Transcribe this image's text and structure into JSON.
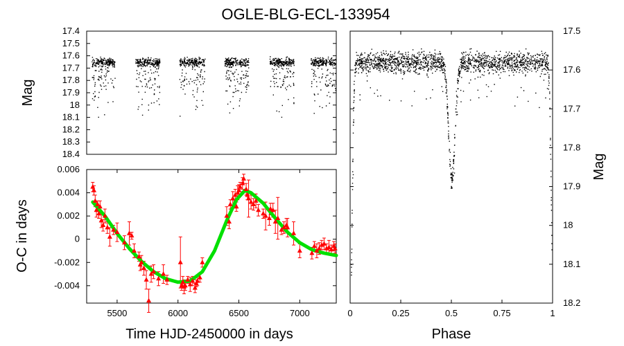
{
  "title": "OGLE-BLG-ECL-133954",
  "chart_data": [
    {
      "id": "lightcurve",
      "type": "scatter",
      "ylabel": "Mag",
      "xlim": [
        5250,
        7300
      ],
      "ylim": [
        18.4,
        17.4
      ],
      "yticks": [
        "17.4",
        "17.5",
        "17.6",
        "17.7",
        "17.8",
        "17.9",
        "18",
        "18.1",
        "18.2",
        "18.3",
        "18.4"
      ],
      "color": "#000000",
      "seasons": [
        {
          "start": 5290,
          "end": 5480
        },
        {
          "start": 5650,
          "end": 5850
        },
        {
          "start": 6010,
          "end": 6220
        },
        {
          "start": 6380,
          "end": 6580
        },
        {
          "start": 6750,
          "end": 6950
        },
        {
          "start": 7090,
          "end": 7300
        }
      ],
      "base_mag": 17.65,
      "eclipse_depth_mag": 0.5
    },
    {
      "id": "oc",
      "type": "scatter",
      "xlabel": "Time HJD-2450000 in days",
      "ylabel": "O-C in days",
      "xlim": [
        5250,
        7300
      ],
      "ylim": [
        -0.0055,
        0.006
      ],
      "xticks": [
        "5500",
        "6000",
        "6500",
        "7000"
      ],
      "yticks": [
        "0.006",
        "0.004",
        "0.002",
        "0",
        "-0.002",
        "-0.004"
      ],
      "points_color": "#ff0000",
      "fit_color": "#00e000",
      "points": [
        [
          5300,
          0.0045
        ],
        [
          5310,
          0.0042
        ],
        [
          5320,
          0.0033
        ],
        [
          5330,
          0.0025
        ],
        [
          5340,
          0.003
        ],
        [
          5350,
          0.0022
        ],
        [
          5360,
          0.0028
        ],
        [
          5370,
          0.0016
        ],
        [
          5385,
          0.0012
        ],
        [
          5400,
          0.002
        ],
        [
          5420,
          0.001
        ],
        [
          5440,
          0.0002
        ],
        [
          5470,
          0.0008
        ],
        [
          5500,
          0.0006
        ],
        [
          5560,
          -0.0003
        ],
        [
          5600,
          0.0005
        ],
        [
          5620,
          0.0003
        ],
        [
          5640,
          -0.001
        ],
        [
          5680,
          -0.0015
        ],
        [
          5690,
          -0.0022
        ],
        [
          5700,
          -0.002
        ],
        [
          5720,
          -0.0025
        ],
        [
          5740,
          -0.0035
        ],
        [
          5760,
          -0.0053
        ],
        [
          5780,
          -0.003
        ],
        [
          5800,
          -0.0028
        ],
        [
          5840,
          -0.0034
        ],
        [
          5880,
          -0.003
        ],
        [
          5910,
          -0.0035
        ],
        [
          6020,
          -0.002
        ],
        [
          6030,
          -0.004
        ],
        [
          6040,
          -0.0037
        ],
        [
          6050,
          -0.0041
        ],
        [
          6060,
          -0.004
        ],
        [
          6080,
          -0.0035
        ],
        [
          6100,
          -0.0039
        ],
        [
          6120,
          -0.0036
        ],
        [
          6140,
          -0.0042
        ],
        [
          6150,
          -0.0038
        ],
        [
          6160,
          -0.0036
        ],
        [
          6180,
          -0.0033
        ],
        [
          6200,
          -0.002
        ],
        [
          6400,
          0.002
        ],
        [
          6420,
          0.0015
        ],
        [
          6430,
          0.003
        ],
        [
          6450,
          0.0035
        ],
        [
          6470,
          0.0038
        ],
        [
          6480,
          0.0028
        ],
        [
          6490,
          0.004
        ],
        [
          6500,
          0.0042
        ],
        [
          6510,
          0.0045
        ],
        [
          6530,
          0.0048
        ],
        [
          6540,
          0.0052
        ],
        [
          6560,
          0.0043
        ],
        [
          6570,
          0.0038
        ],
        [
          6580,
          0.0035
        ],
        [
          6600,
          0.0032
        ],
        [
          6620,
          0.003
        ],
        [
          6640,
          0.0033
        ],
        [
          6660,
          0.0025
        ],
        [
          6700,
          0.0022
        ],
        [
          6720,
          0.002
        ],
        [
          6750,
          0.0018
        ],
        [
          6760,
          0.0026
        ],
        [
          6780,
          0.0025
        ],
        [
          6800,
          0.0015
        ],
        [
          6820,
          0.0018
        ],
        [
          6850,
          0.0008
        ],
        [
          6870,
          0.001
        ],
        [
          6890,
          0.0012
        ],
        [
          6900,
          0.001
        ],
        [
          6950,
          0.0005
        ],
        [
          7000,
          -0.001
        ],
        [
          7100,
          -0.0012
        ],
        [
          7120,
          -0.0006
        ],
        [
          7140,
          -0.001
        ],
        [
          7160,
          -0.0008
        ],
        [
          7180,
          -0.0005
        ],
        [
          7200,
          -0.0004
        ],
        [
          7220,
          -0.0008
        ],
        [
          7240,
          -0.0007
        ],
        [
          7260,
          -0.0009
        ],
        [
          7280,
          -0.0006
        ],
        [
          7290,
          -0.0008
        ]
      ],
      "errors": [
        0.0004,
        0.0004,
        0.0005,
        0.0006,
        0.0003,
        0.0004,
        0.0005,
        0.0006,
        0.0005,
        0.0006,
        0.0005,
        0.0008,
        0.0004,
        0.0008,
        0.0006,
        0.001,
        0.0003,
        0.0006,
        0.0004,
        0.0005,
        0.0006,
        0.0006,
        0.0008,
        0.001,
        0.0007,
        0.0006,
        0.0006,
        0.0008,
        0.0004,
        0.0022,
        0.0004,
        0.0005,
        0.0006,
        0.0004,
        0.0003,
        0.0006,
        0.0004,
        0.0004,
        0.0003,
        0.0004,
        0.0004,
        0.0004,
        0.0008,
        0.0006,
        0.0004,
        0.0006,
        0.0005,
        0.0004,
        0.0006,
        0.0005,
        0.0004,
        0.0005,
        0.0004,
        0.0005,
        0.0004,
        0.0016,
        0.0006,
        0.0005,
        0.0006,
        0.0005,
        0.0004,
        0.0012,
        0.0006,
        0.0005,
        0.0006,
        0.001,
        0.0018,
        0.0004,
        0.0005,
        0.0006,
        0.0008,
        0.001,
        0.0006,
        0.0005,
        0.0004,
        0.0006,
        0.0005,
        0.0004,
        0.0005,
        0.0004,
        0.0006,
        0.0004,
        0.0004,
        0.0004
      ],
      "fit": [
        [
          5300,
          0.0032
        ],
        [
          5400,
          0.002
        ],
        [
          5500,
          0.0005
        ],
        [
          5600,
          -0.0008
        ],
        [
          5700,
          -0.0019
        ],
        [
          5800,
          -0.0028
        ],
        [
          5900,
          -0.0034
        ],
        [
          6000,
          -0.0037
        ],
        [
          6100,
          -0.0036
        ],
        [
          6200,
          -0.0028
        ],
        [
          6300,
          -0.001
        ],
        [
          6400,
          0.0016
        ],
        [
          6480,
          0.0034
        ],
        [
          6550,
          0.0042
        ],
        [
          6600,
          0.004
        ],
        [
          6700,
          0.0031
        ],
        [
          6800,
          0.0018
        ],
        [
          6900,
          0.0006
        ],
        [
          7000,
          -0.0003
        ],
        [
          7100,
          -0.0009
        ],
        [
          7200,
          -0.0012
        ],
        [
          7300,
          -0.0014
        ]
      ]
    },
    {
      "id": "phased",
      "type": "scatter",
      "xlabel": "Phase",
      "ylabel": "Mag",
      "xlim": [
        0,
        1
      ],
      "ylim": [
        18.2,
        17.5
      ],
      "xticks": [
        "0",
        "0.25",
        "0.5",
        "0.75",
        "1"
      ],
      "yticks": [
        "17.5",
        "17.6",
        "17.7",
        "17.8",
        "17.9",
        "18",
        "18.1",
        "18.2"
      ],
      "color": "#000000",
      "base_mag": 17.58,
      "primary_depth_mag": 0.6,
      "secondary_depth_mag": 0.3,
      "secondary_phase": 0.5
    }
  ]
}
